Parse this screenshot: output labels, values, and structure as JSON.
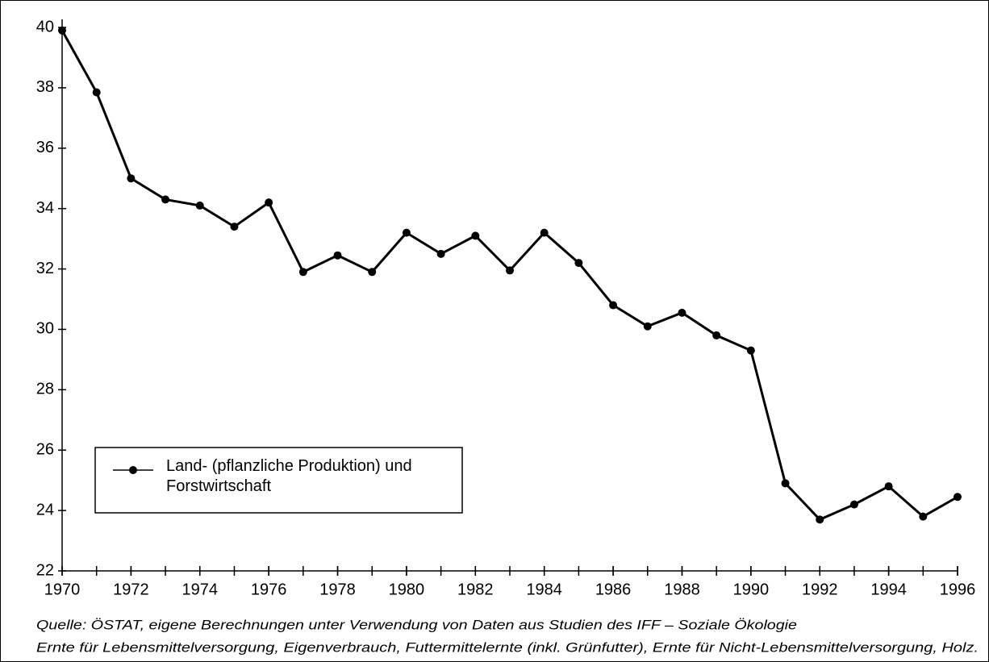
{
  "chart_data": {
    "type": "line",
    "x": [
      1970,
      1971,
      1972,
      1973,
      1974,
      1975,
      1976,
      1977,
      1978,
      1979,
      1980,
      1981,
      1982,
      1983,
      1984,
      1985,
      1986,
      1987,
      1988,
      1989,
      1990,
      1991,
      1992,
      1993,
      1994,
      1995,
      1996
    ],
    "series": [
      {
        "name": "Land- (pflanzliche Produktion) und Forstwirtschaft",
        "color": "#000000",
        "values": [
          39.9,
          37.85,
          35.0,
          34.3,
          34.1,
          33.4,
          34.2,
          31.9,
          32.45,
          31.9,
          33.2,
          32.5,
          33.1,
          31.95,
          33.2,
          32.2,
          30.8,
          30.1,
          30.55,
          29.8,
          29.3,
          24.9,
          23.7,
          24.2,
          24.8,
          23.8,
          24.45
        ]
      }
    ],
    "xlim": [
      1970,
      1996
    ],
    "xticks": [
      1970,
      1972,
      1974,
      1976,
      1978,
      1980,
      1982,
      1984,
      1986,
      1988,
      1990,
      1992,
      1994,
      1996
    ],
    "ylim": [
      22,
      40
    ],
    "yticks": [
      22,
      24,
      26,
      28,
      30,
      32,
      34,
      36,
      38,
      40
    ],
    "grid": false,
    "legend": "lower left",
    "notes": [
      "Quelle: ÖSTAT, eigene Berechnungen unter Verwendung von Daten aus Studien des IFF – Soziale Ökologie",
      "Ernte für Lebensmittelversorgung, Eigenverbrauch, Futtermittelernte (inkl. Grünfutter), Ernte für Nicht-Lebensmittelversorgung, Holz."
    ]
  }
}
